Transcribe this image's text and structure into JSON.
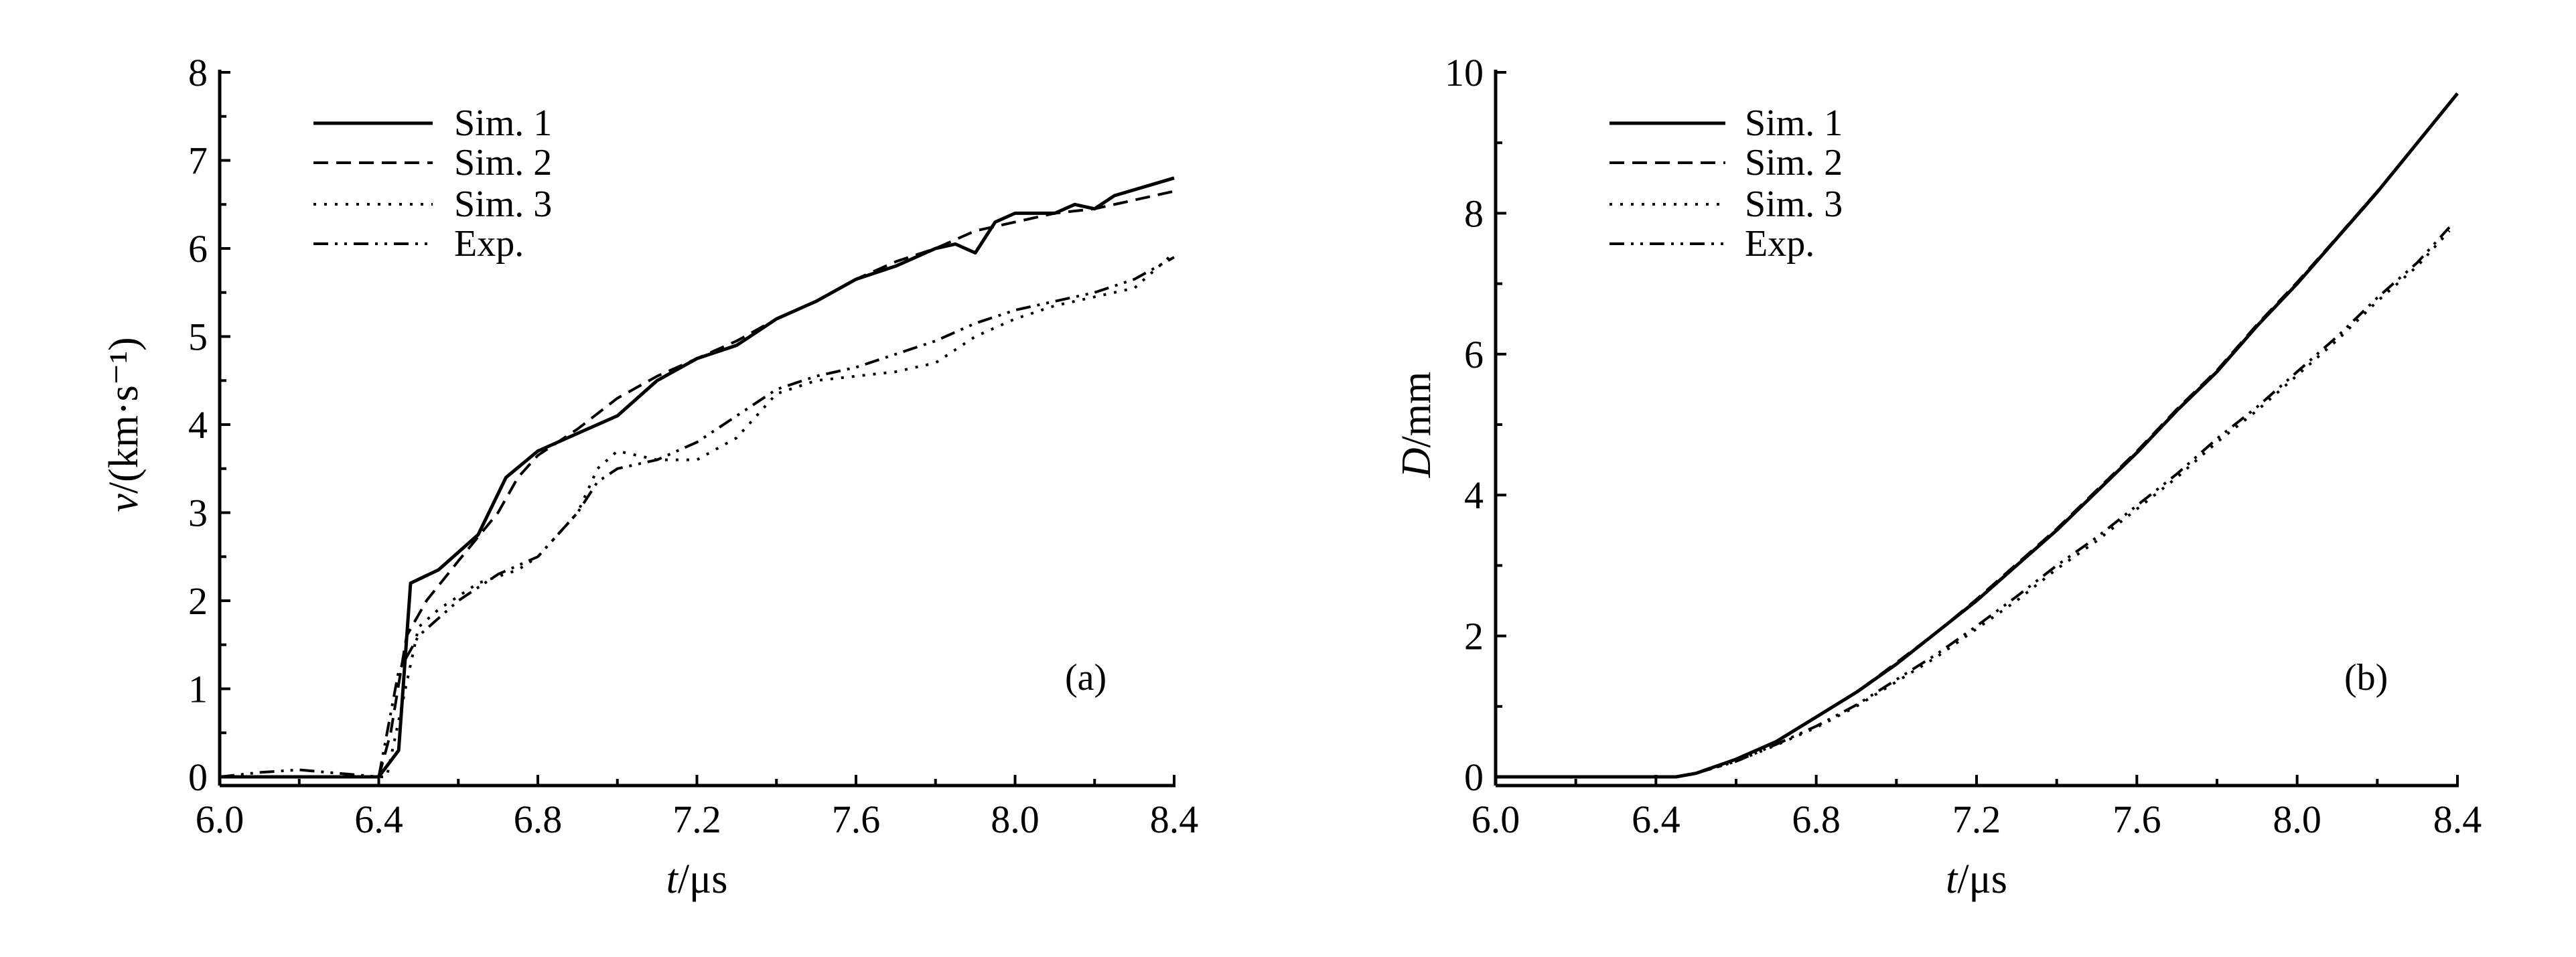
{
  "chart_data": [
    {
      "type": "line",
      "panel_label": "(a)",
      "xlabel_var": "t",
      "xlabel_unit": "/μs",
      "ylabel_var": "v",
      "ylabel_unit": "/(km·s⁻¹)",
      "xlim": [
        6.0,
        8.4
      ],
      "ylim": [
        0,
        8
      ],
      "xticks": [
        "6.0",
        "6.4",
        "6.8",
        "7.2",
        "7.6",
        "8.0",
        "8.4"
      ],
      "yticks": [
        "0",
        "1",
        "2",
        "3",
        "4",
        "5",
        "6",
        "7",
        "8"
      ],
      "legend_position": "top-left",
      "series": [
        {
          "name": "Sim. 1",
          "style": "solid",
          "x": [
            6.0,
            6.4,
            6.45,
            6.48,
            6.55,
            6.65,
            6.72,
            6.8,
            6.9,
            7.0,
            7.1,
            7.2,
            7.3,
            7.4,
            7.5,
            7.6,
            7.7,
            7.8,
            7.85,
            7.9,
            7.95,
            8.0,
            8.1,
            8.15,
            8.2,
            8.25,
            8.4
          ],
          "y": [
            0,
            0,
            0.3,
            2.2,
            2.35,
            2.75,
            3.4,
            3.7,
            3.9,
            4.1,
            4.5,
            4.75,
            4.9,
            5.2,
            5.4,
            5.65,
            5.8,
            6.0,
            6.05,
            5.95,
            6.3,
            6.4,
            6.4,
            6.5,
            6.45,
            6.6,
            6.8
          ]
        },
        {
          "name": "Sim. 2",
          "style": "dashed",
          "x": [
            6.0,
            6.4,
            6.43,
            6.47,
            6.52,
            6.6,
            6.7,
            6.75,
            6.8,
            6.9,
            7.0,
            7.1,
            7.2,
            7.3,
            7.4,
            7.5,
            7.6,
            7.7,
            7.8,
            7.9,
            8.0,
            8.1,
            8.2,
            8.3,
            8.4
          ],
          "y": [
            0,
            0,
            0.5,
            1.6,
            2.0,
            2.45,
            3.0,
            3.4,
            3.65,
            3.95,
            4.3,
            4.55,
            4.75,
            4.95,
            5.2,
            5.4,
            5.65,
            5.85,
            6.0,
            6.2,
            6.3,
            6.4,
            6.45,
            6.55,
            6.65
          ]
        },
        {
          "name": "Sim. 3",
          "style": "dotted",
          "x": [
            6.0,
            6.42,
            6.5,
            6.55,
            6.65,
            6.75,
            6.8,
            6.9,
            6.95,
            7.0,
            7.1,
            7.2,
            7.3,
            7.4,
            7.5,
            7.6,
            7.7,
            7.8,
            7.9,
            8.0,
            8.1,
            8.2,
            8.3,
            8.4
          ],
          "y": [
            0,
            0,
            1.7,
            1.9,
            2.2,
            2.35,
            2.5,
            3.0,
            3.5,
            3.7,
            3.6,
            3.6,
            3.85,
            4.35,
            4.5,
            4.55,
            4.6,
            4.7,
            5.0,
            5.2,
            5.35,
            5.45,
            5.55,
            5.95
          ]
        },
        {
          "name": "Exp.",
          "style": "dashdotdot",
          "x": [
            6.0,
            6.1,
            6.2,
            6.4,
            6.45,
            6.5,
            6.6,
            6.7,
            6.8,
            6.9,
            6.95,
            7.0,
            7.1,
            7.2,
            7.3,
            7.4,
            7.5,
            7.6,
            7.7,
            7.8,
            7.9,
            8.0,
            8.1,
            8.2,
            8.3,
            8.4
          ],
          "y": [
            0,
            0.05,
            0.08,
            0,
            1.2,
            1.6,
            2.0,
            2.3,
            2.5,
            3.0,
            3.35,
            3.5,
            3.6,
            3.8,
            4.1,
            4.4,
            4.55,
            4.65,
            4.8,
            4.95,
            5.15,
            5.3,
            5.4,
            5.5,
            5.65,
            5.9
          ]
        }
      ]
    },
    {
      "type": "line",
      "panel_label": "(b)",
      "xlabel_var": "t",
      "xlabel_unit": "/μs",
      "ylabel_var": "D",
      "ylabel_unit": "/mm",
      "xlim": [
        6.0,
        8.4
      ],
      "ylim": [
        0,
        10
      ],
      "xticks": [
        "6.0",
        "6.4",
        "6.8",
        "7.2",
        "7.6",
        "8.0",
        "8.4"
      ],
      "yticks": [
        "0",
        "2",
        "4",
        "6",
        "8",
        "10"
      ],
      "legend_position": "top-left",
      "series": [
        {
          "name": "Sim. 1",
          "style": "solid",
          "x": [
            6.0,
            6.45,
            6.5,
            6.6,
            6.7,
            6.8,
            6.9,
            7.0,
            7.1,
            7.2,
            7.3,
            7.4,
            7.5,
            7.6,
            7.7,
            7.8,
            7.9,
            8.0,
            8.1,
            8.2,
            8.3,
            8.4
          ],
          "y": [
            0,
            0,
            0.05,
            0.25,
            0.5,
            0.85,
            1.2,
            1.6,
            2.05,
            2.5,
            3.0,
            3.5,
            4.05,
            4.6,
            5.2,
            5.75,
            6.4,
            7.0,
            7.65,
            8.3,
            9.0,
            9.7
          ]
        },
        {
          "name": "Sim. 2",
          "style": "dashed",
          "x": [
            6.0,
            6.45,
            6.5,
            6.6,
            6.7,
            6.8,
            6.9,
            7.0,
            7.1,
            7.2,
            7.3,
            7.4,
            7.5,
            7.6,
            7.7,
            7.8,
            7.9,
            8.0,
            8.1,
            8.2,
            8.3,
            8.4
          ],
          "y": [
            0,
            0,
            0.05,
            0.25,
            0.5,
            0.85,
            1.2,
            1.62,
            2.05,
            2.52,
            3.02,
            3.52,
            4.07,
            4.62,
            5.22,
            5.77,
            6.42,
            7.02,
            7.66,
            8.31,
            9.0,
            9.7
          ]
        },
        {
          "name": "Sim. 3",
          "style": "dotted",
          "x": [
            6.0,
            6.45,
            6.5,
            6.6,
            6.7,
            6.8,
            6.9,
            7.0,
            7.1,
            7.2,
            7.3,
            7.4,
            7.5,
            7.6,
            7.7,
            7.8,
            7.9,
            8.0,
            8.1,
            8.2,
            8.3,
            8.38
          ],
          "y": [
            0,
            0,
            0.05,
            0.22,
            0.45,
            0.7,
            1.0,
            1.35,
            1.7,
            2.1,
            2.5,
            2.95,
            3.35,
            3.8,
            4.25,
            4.75,
            5.2,
            5.7,
            6.2,
            6.75,
            7.25,
            7.75
          ]
        },
        {
          "name": "Exp.",
          "style": "dashdotdot",
          "x": [
            6.0,
            6.45,
            6.5,
            6.6,
            6.7,
            6.8,
            6.9,
            7.0,
            7.1,
            7.2,
            7.3,
            7.4,
            7.5,
            7.6,
            7.7,
            7.8,
            7.9,
            8.0,
            8.1,
            8.2,
            8.3,
            8.38
          ],
          "y": [
            0,
            0,
            0.05,
            0.22,
            0.46,
            0.72,
            1.02,
            1.38,
            1.74,
            2.14,
            2.56,
            3.0,
            3.4,
            3.85,
            4.3,
            4.8,
            5.25,
            5.75,
            6.25,
            6.8,
            7.3,
            7.8
          ]
        }
      ]
    }
  ]
}
